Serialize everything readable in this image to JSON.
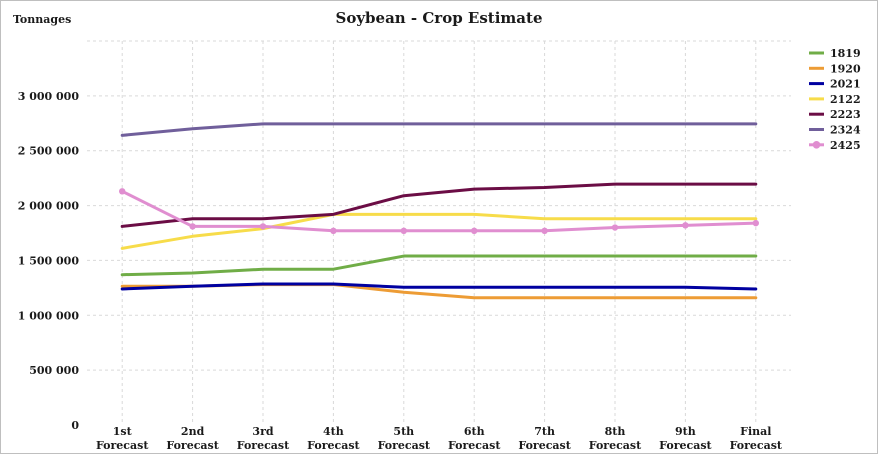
{
  "chart_data": {
    "type": "line",
    "title": "Soybean - Crop Estimate",
    "ylabel": "Tonnages",
    "xlabel": "",
    "categories": [
      [
        "1st",
        "Forecast"
      ],
      [
        "2nd",
        "Forecast"
      ],
      [
        "3rd",
        "Forecast"
      ],
      [
        "4th",
        "Forecast"
      ],
      [
        "5th",
        "Forecast"
      ],
      [
        "6th",
        "Forecast"
      ],
      [
        "7th",
        "Forecast"
      ],
      [
        "8th",
        "Forecast"
      ],
      [
        "9th",
        "Forecast"
      ],
      [
        "Final",
        "Forecast"
      ]
    ],
    "ylim": [
      0,
      3500000
    ],
    "yticks": [
      0,
      500000,
      1000000,
      1500000,
      2000000,
      2500000,
      3000000
    ],
    "ytick_labels": [
      "0",
      "500 000",
      "1 000 000",
      "1 500 000",
      "2 000 000",
      "2 500 000",
      "3 000 000"
    ],
    "grid": true,
    "legend_position": "right",
    "series": [
      {
        "name": "1819",
        "color": "#70ad47",
        "marker": false,
        "values": [
          1370000,
          1385000,
          1420000,
          1420000,
          1540000,
          1540000,
          1540000,
          1540000,
          1540000,
          1540000
        ]
      },
      {
        "name": "1920",
        "color": "#ed9c35",
        "marker": false,
        "values": [
          1265000,
          1265000,
          1280000,
          1280000,
          1210000,
          1160000,
          1160000,
          1160000,
          1160000,
          1160000
        ]
      },
      {
        "name": "2021",
        "color": "#0000a0",
        "marker": false,
        "values": [
          1240000,
          1265000,
          1285000,
          1285000,
          1255000,
          1255000,
          1255000,
          1255000,
          1255000,
          1240000
        ]
      },
      {
        "name": "2122",
        "color": "#f7dc4a",
        "marker": false,
        "values": [
          1610000,
          1720000,
          1790000,
          1920000,
          1920000,
          1920000,
          1880000,
          1880000,
          1880000,
          1880000
        ]
      },
      {
        "name": "2223",
        "color": "#6b0d45",
        "marker": false,
        "values": [
          1810000,
          1880000,
          1880000,
          1920000,
          2090000,
          2150000,
          2165000,
          2195000,
          2195000,
          2195000
        ]
      },
      {
        "name": "2324",
        "color": "#705f9b",
        "marker": false,
        "values": [
          2640000,
          2700000,
          2745000,
          2745000,
          2745000,
          2745000,
          2745000,
          2745000,
          2745000,
          2745000
        ]
      },
      {
        "name": "2425",
        "color": "#e08ed0",
        "marker": true,
        "values": [
          2130000,
          1810000,
          1810000,
          1770000,
          1770000,
          1770000,
          1770000,
          1800000,
          1820000,
          1840000
        ]
      }
    ]
  }
}
